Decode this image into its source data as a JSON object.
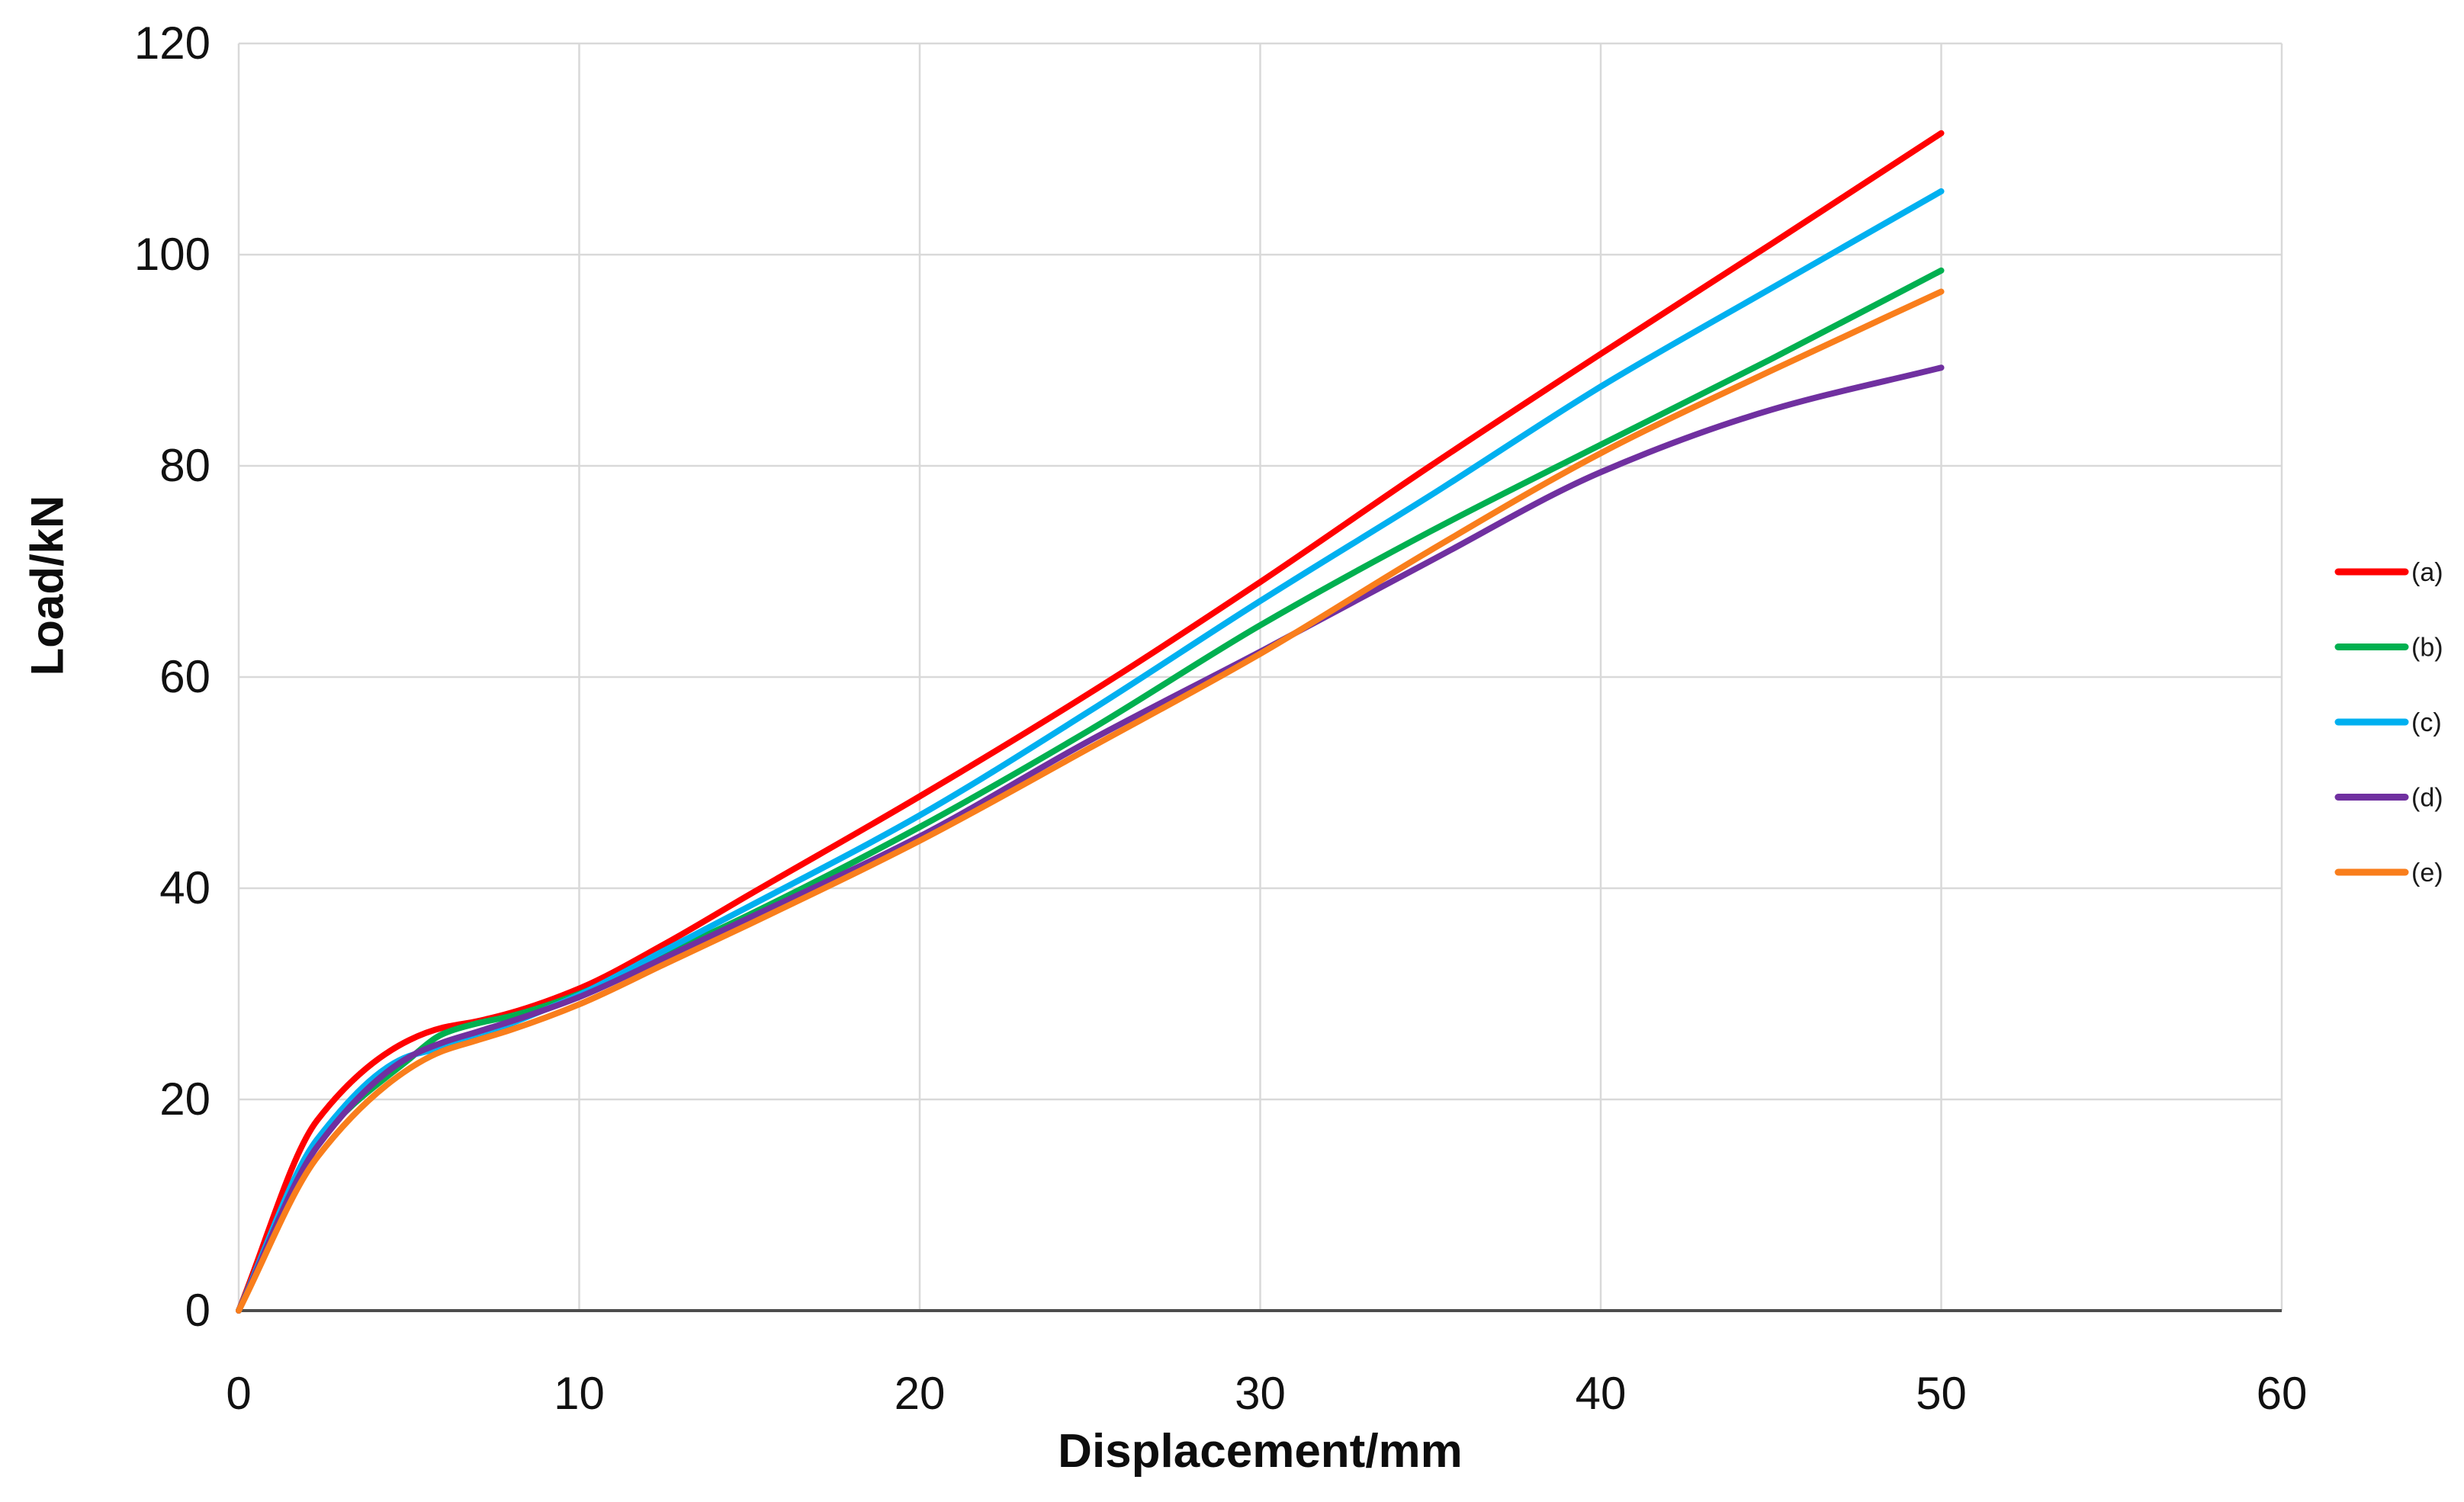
{
  "chart_data": {
    "type": "line",
    "title": "",
    "xlabel": "Displacement/mm",
    "ylabel": "Load/kN",
    "xlim": [
      0,
      60
    ],
    "ylim": [
      0,
      120
    ],
    "x_ticks": [
      0,
      10,
      20,
      30,
      40,
      50,
      60
    ],
    "y_ticks": [
      0,
      20,
      40,
      60,
      80,
      100,
      120
    ],
    "grid": true,
    "legend_position": "right",
    "x": [
      0,
      2.3,
      5,
      6,
      7,
      8,
      10,
      12.5,
      15,
      20,
      25,
      30,
      35,
      40,
      45,
      50
    ],
    "series": [
      {
        "name": "(a)",
        "color": "#FF0000",
        "values": [
          0,
          18.0,
          25.6,
          26.8,
          27.4,
          28.2,
          30.5,
          34.7,
          39.4,
          48.7,
          58.5,
          69.0,
          80.0,
          90.6,
          101.0,
          111.5
        ]
      },
      {
        "name": "(b)",
        "color": "#00B050",
        "values": [
          0,
          15.8,
          23.8,
          26.2,
          27.2,
          27.9,
          30.0,
          33.7,
          37.5,
          45.8,
          55.0,
          64.9,
          73.8,
          82.0,
          90.1,
          98.5
        ]
      },
      {
        "name": "(c)",
        "color": "#00B0F0",
        "values": [
          0,
          16.2,
          24.1,
          24.9,
          25.9,
          27.2,
          29.9,
          34.1,
          38.3,
          46.9,
          56.8,
          67.2,
          77.2,
          87.5,
          96.8,
          106.0
        ]
      },
      {
        "name": "(d)",
        "color": "#7030A0",
        "values": [
          0,
          15.5,
          24.0,
          25.4,
          26.4,
          27.4,
          29.7,
          33.4,
          37.2,
          44.9,
          54.0,
          62.4,
          71.0,
          79.4,
          85.3,
          89.3
        ]
      },
      {
        "name": "(e)",
        "color": "#F97E1C",
        "values": [
          0,
          14.5,
          22.9,
          24.6,
          25.6,
          26.6,
          29.0,
          32.8,
          36.6,
          44.5,
          53.3,
          62.2,
          72.0,
          81.2,
          89.0,
          96.5
        ]
      }
    ],
    "colors": {
      "gridline": "#D9D9D9",
      "axis_line": "#4d4d4d",
      "tick_text": "#111111"
    }
  }
}
